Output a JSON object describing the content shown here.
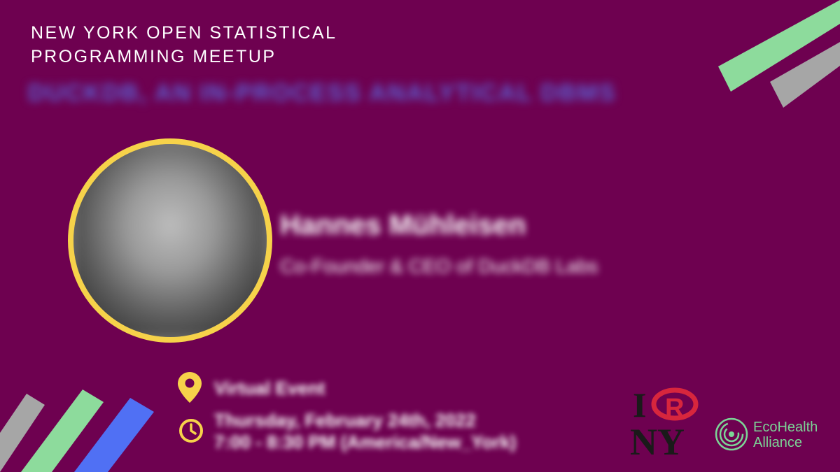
{
  "event": {
    "org_title": "NEW YORK OPEN STATISTICAL\nPROGRAMMING MEETUP",
    "talk_title": "DUCKDB, AN IN-PROCESS ANALYTICAL DBMS"
  },
  "speaker": {
    "name": "Hannes Mühleisen",
    "role": "Co-Founder & CEO of DuckDB Labs"
  },
  "details": {
    "location": "Virtual Event",
    "date": "Thursday, February 24th, 2022",
    "time": "7:00 - 8:30 PM (America/New_York)"
  },
  "logos": {
    "irny": {
      "letters_top": "I",
      "letter_r": "R",
      "letters_bottom": "NY"
    },
    "ecohealth": {
      "name": "EcoHealth\nAlliance"
    }
  },
  "colors": {
    "background": "#6e0150",
    "accent_yellow": "#f6d24a",
    "stripe_green": "#8ddb9c",
    "stripe_gray": "#a6a6a6",
    "stripe_blue": "#5070f4",
    "eco_green": "#7cd496"
  },
  "icons": {
    "location": "map-pin-icon",
    "time": "clock-icon"
  }
}
